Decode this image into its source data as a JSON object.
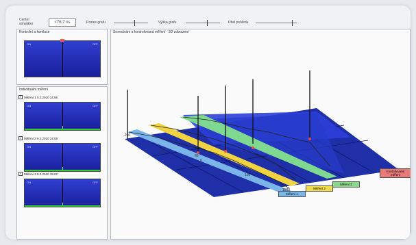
{
  "toolbar": {
    "center_label": "Center\nsimulátor",
    "center_value": "<76,7 ns",
    "slider1_label": "Pozice grafu",
    "slider2_label": "Výška grafu",
    "slider3_label": "Úhel pohledu"
  },
  "left": {
    "controls_title": "Kontrolní a korelace",
    "individual_title": "Individuální měření",
    "items": [
      {
        "label": "Měření 1  9.2.2010 14:56"
      },
      {
        "label": "Měření 2  9.2.2010 14:59"
      },
      {
        "label": "Měření 3  9.2.2010 15:02"
      }
    ],
    "mini_left_tag": "ON",
    "mini_right_tag": "OFF"
  },
  "main": {
    "title": "Srovnávání a kontrolovaná měření - 3D zobrazení",
    "ticks": [
      "-250",
      "0",
      "80",
      "150",
      "1500"
    ],
    "back_tick": "-250",
    "legend": [
      {
        "text": "Měření 1",
        "color": "#7ab6e6"
      },
      {
        "text": "Měření 2",
        "color": "#f0dc46"
      },
      {
        "text": "Měření 3",
        "color": "#8ad889"
      },
      {
        "text": "Kontrolované měření",
        "color": "#e87a7a"
      }
    ]
  }
}
